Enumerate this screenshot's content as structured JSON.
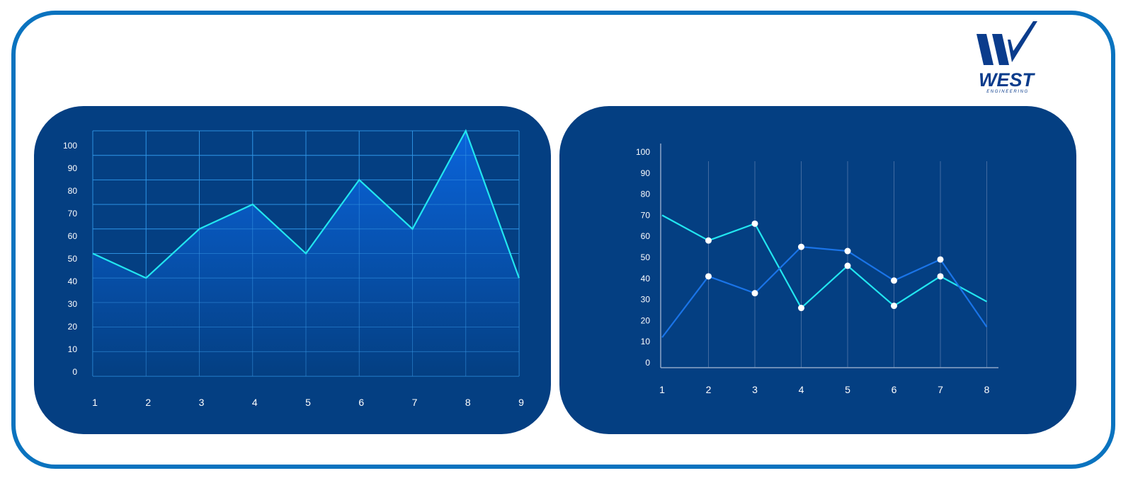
{
  "brand": {
    "name": "WEST",
    "tagline": "ENGINEERING",
    "colors": {
      "frame": "#0a73bf",
      "panel": "#043f82",
      "logo": "#0b3c8c"
    }
  },
  "chart_data": [
    {
      "type": "area",
      "x": [
        1,
        2,
        3,
        4,
        5,
        6,
        7,
        8,
        9
      ],
      "series": [
        {
          "values": [
            50,
            40,
            60,
            70,
            50,
            80,
            60,
            100,
            40
          ],
          "color": "#22e6f0"
        }
      ],
      "x_tick_labels": [
        "1",
        "2",
        "3",
        "4",
        "5",
        "6",
        "7",
        "8",
        "9"
      ],
      "y_tick_labels": [
        "0",
        "10",
        "20",
        "30",
        "40",
        "50",
        "60",
        "70",
        "80",
        "90",
        "100"
      ],
      "ylim": [
        0,
        100
      ],
      "grid": true
    },
    {
      "type": "line",
      "x": [
        1,
        2,
        3,
        4,
        5,
        6,
        7,
        8
      ],
      "series": [
        {
          "values": [
            70,
            58,
            66,
            26,
            46,
            27,
            41,
            29
          ],
          "color": "#22e6f0",
          "markers": [
            2,
            3,
            4,
            5,
            6,
            7
          ]
        },
        {
          "values": [
            12,
            41,
            33,
            55,
            53,
            39,
            49,
            17
          ],
          "color": "#1a74e8",
          "markers": [
            2,
            3,
            4,
            5,
            6,
            7
          ]
        }
      ],
      "x_tick_labels": [
        "1",
        "2",
        "3",
        "4",
        "5",
        "6",
        "7",
        "8"
      ],
      "y_tick_labels": [
        "0",
        "10",
        "20",
        "30",
        "40",
        "50",
        "60",
        "70",
        "80",
        "90",
        "100"
      ],
      "ylim": [
        0,
        100
      ],
      "grid": "vertical"
    }
  ]
}
